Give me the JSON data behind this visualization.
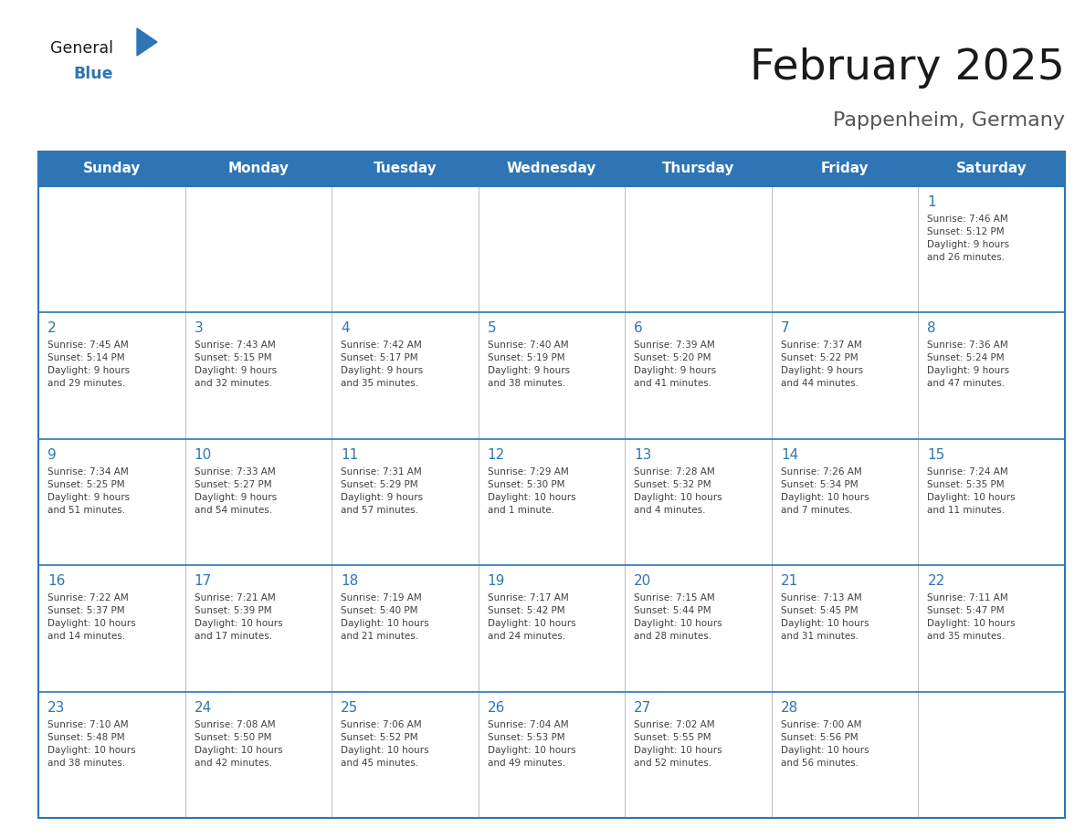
{
  "title": "February 2025",
  "subtitle": "Pappenheim, Germany",
  "days_of_week": [
    "Sunday",
    "Monday",
    "Tuesday",
    "Wednesday",
    "Thursday",
    "Friday",
    "Saturday"
  ],
  "header_bg": "#2E75B6",
  "header_text": "#FFFFFF",
  "cell_bg": "#FFFFFF",
  "day_number_color": "#2E75B6",
  "text_color": "#404040",
  "line_color": "#2E75B6",
  "row_line_color": "#2E75B6",
  "title_color": "#1A1A1A",
  "subtitle_color": "#555555",
  "logo_general_color": "#1A1A1A",
  "logo_blue_color": "#2E75B6",
  "calendar_data": [
    [
      {
        "day": null,
        "info": null
      },
      {
        "day": null,
        "info": null
      },
      {
        "day": null,
        "info": null
      },
      {
        "day": null,
        "info": null
      },
      {
        "day": null,
        "info": null
      },
      {
        "day": null,
        "info": null
      },
      {
        "day": 1,
        "info": "Sunrise: 7:46 AM\nSunset: 5:12 PM\nDaylight: 9 hours\nand 26 minutes."
      }
    ],
    [
      {
        "day": 2,
        "info": "Sunrise: 7:45 AM\nSunset: 5:14 PM\nDaylight: 9 hours\nand 29 minutes."
      },
      {
        "day": 3,
        "info": "Sunrise: 7:43 AM\nSunset: 5:15 PM\nDaylight: 9 hours\nand 32 minutes."
      },
      {
        "day": 4,
        "info": "Sunrise: 7:42 AM\nSunset: 5:17 PM\nDaylight: 9 hours\nand 35 minutes."
      },
      {
        "day": 5,
        "info": "Sunrise: 7:40 AM\nSunset: 5:19 PM\nDaylight: 9 hours\nand 38 minutes."
      },
      {
        "day": 6,
        "info": "Sunrise: 7:39 AM\nSunset: 5:20 PM\nDaylight: 9 hours\nand 41 minutes."
      },
      {
        "day": 7,
        "info": "Sunrise: 7:37 AM\nSunset: 5:22 PM\nDaylight: 9 hours\nand 44 minutes."
      },
      {
        "day": 8,
        "info": "Sunrise: 7:36 AM\nSunset: 5:24 PM\nDaylight: 9 hours\nand 47 minutes."
      }
    ],
    [
      {
        "day": 9,
        "info": "Sunrise: 7:34 AM\nSunset: 5:25 PM\nDaylight: 9 hours\nand 51 minutes."
      },
      {
        "day": 10,
        "info": "Sunrise: 7:33 AM\nSunset: 5:27 PM\nDaylight: 9 hours\nand 54 minutes."
      },
      {
        "day": 11,
        "info": "Sunrise: 7:31 AM\nSunset: 5:29 PM\nDaylight: 9 hours\nand 57 minutes."
      },
      {
        "day": 12,
        "info": "Sunrise: 7:29 AM\nSunset: 5:30 PM\nDaylight: 10 hours\nand 1 minute."
      },
      {
        "day": 13,
        "info": "Sunrise: 7:28 AM\nSunset: 5:32 PM\nDaylight: 10 hours\nand 4 minutes."
      },
      {
        "day": 14,
        "info": "Sunrise: 7:26 AM\nSunset: 5:34 PM\nDaylight: 10 hours\nand 7 minutes."
      },
      {
        "day": 15,
        "info": "Sunrise: 7:24 AM\nSunset: 5:35 PM\nDaylight: 10 hours\nand 11 minutes."
      }
    ],
    [
      {
        "day": 16,
        "info": "Sunrise: 7:22 AM\nSunset: 5:37 PM\nDaylight: 10 hours\nand 14 minutes."
      },
      {
        "day": 17,
        "info": "Sunrise: 7:21 AM\nSunset: 5:39 PM\nDaylight: 10 hours\nand 17 minutes."
      },
      {
        "day": 18,
        "info": "Sunrise: 7:19 AM\nSunset: 5:40 PM\nDaylight: 10 hours\nand 21 minutes."
      },
      {
        "day": 19,
        "info": "Sunrise: 7:17 AM\nSunset: 5:42 PM\nDaylight: 10 hours\nand 24 minutes."
      },
      {
        "day": 20,
        "info": "Sunrise: 7:15 AM\nSunset: 5:44 PM\nDaylight: 10 hours\nand 28 minutes."
      },
      {
        "day": 21,
        "info": "Sunrise: 7:13 AM\nSunset: 5:45 PM\nDaylight: 10 hours\nand 31 minutes."
      },
      {
        "day": 22,
        "info": "Sunrise: 7:11 AM\nSunset: 5:47 PM\nDaylight: 10 hours\nand 35 minutes."
      }
    ],
    [
      {
        "day": 23,
        "info": "Sunrise: 7:10 AM\nSunset: 5:48 PM\nDaylight: 10 hours\nand 38 minutes."
      },
      {
        "day": 24,
        "info": "Sunrise: 7:08 AM\nSunset: 5:50 PM\nDaylight: 10 hours\nand 42 minutes."
      },
      {
        "day": 25,
        "info": "Sunrise: 7:06 AM\nSunset: 5:52 PM\nDaylight: 10 hours\nand 45 minutes."
      },
      {
        "day": 26,
        "info": "Sunrise: 7:04 AM\nSunset: 5:53 PM\nDaylight: 10 hours\nand 49 minutes."
      },
      {
        "day": 27,
        "info": "Sunrise: 7:02 AM\nSunset: 5:55 PM\nDaylight: 10 hours\nand 52 minutes."
      },
      {
        "day": 28,
        "info": "Sunrise: 7:00 AM\nSunset: 5:56 PM\nDaylight: 10 hours\nand 56 minutes."
      },
      {
        "day": null,
        "info": null
      }
    ]
  ]
}
